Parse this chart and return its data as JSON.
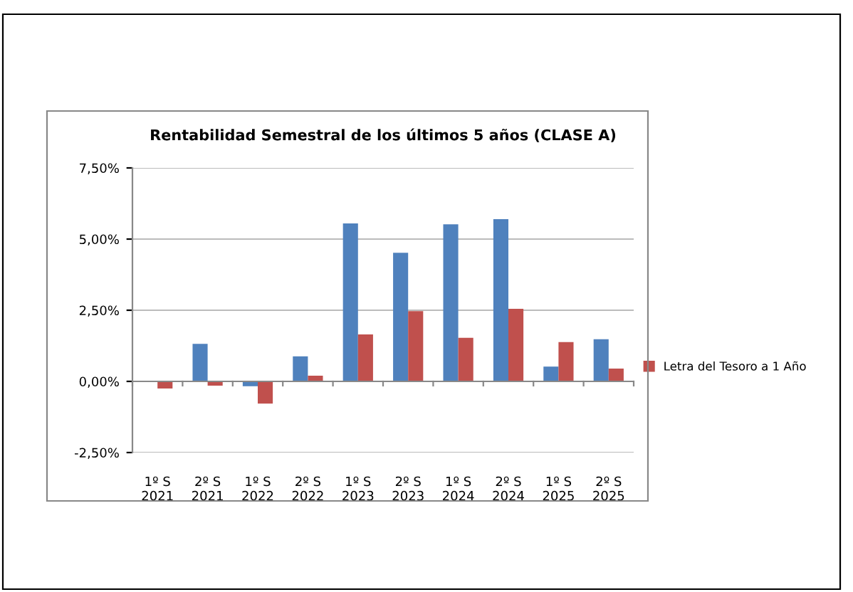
{
  "chart_data": {
    "type": "bar",
    "title": "Rentabilidad Semestral de los últimos 5 años (CLASE A)",
    "categories": [
      "1º S\n2021",
      "2º S\n2021",
      "1º S\n2022",
      "2º S\n2022",
      "1º S\n2023",
      "2º S\n2023",
      "1º S\n2024",
      "2º S\n2024",
      "1º S\n2025",
      "2º S\n2025"
    ],
    "series": [
      {
        "color": "#4f81bd",
        "values": [
          0,
          1.32,
          -0.17,
          0.88,
          5.55,
          4.52,
          5.52,
          5.7,
          0.52,
          1.48
        ]
      },
      {
        "name": "Letra del Tesoro a 1 Año",
        "color": "#c0504d",
        "values": [
          -0.25,
          -0.15,
          -0.78,
          0.2,
          1.65,
          2.47,
          1.53,
          2.55,
          1.38,
          0.45
        ]
      }
    ],
    "ylim": [
      -2.5,
      7.5
    ],
    "yticks": [
      {
        "value": -2.5,
        "label": "-2,50%"
      },
      {
        "value": 0,
        "label": "0,00%"
      },
      {
        "value": 2.5,
        "label": "2,50%"
      },
      {
        "value": 5,
        "label": "5,00%"
      },
      {
        "value": 7.5,
        "label": "7,50%"
      }
    ],
    "grid": "y",
    "legend": "right"
  }
}
